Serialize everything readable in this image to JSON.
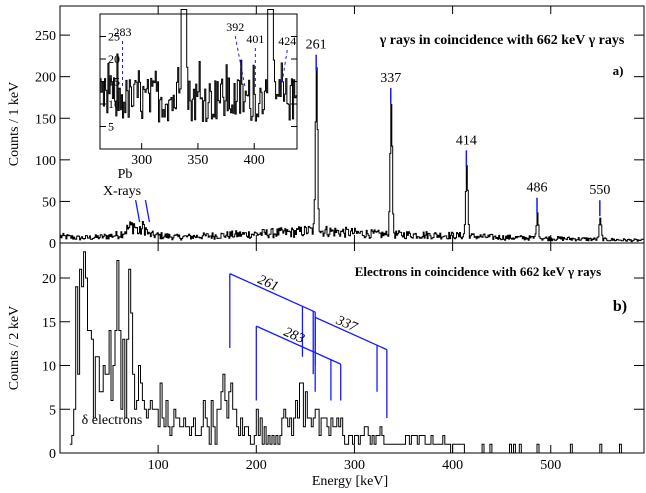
{
  "chart_data": [
    {
      "type": "line",
      "panel_label": "a)",
      "title": "γ rays in coincidence with 662 keV  γ rays",
      "ylabel": "Counts / 1 keV",
      "xlim": [
        0,
        595
      ],
      "ylim": [
        0,
        285
      ],
      "x_ticks": [
        100,
        200,
        300,
        400,
        500
      ],
      "y_ticks": [
        0,
        50,
        100,
        150,
        200,
        250
      ],
      "peaks": [
        {
          "energy": 261,
          "label": "261",
          "height": 200
        },
        {
          "energy": 337,
          "label": "337",
          "height": 160
        },
        {
          "energy": 414,
          "label": "414",
          "height": 85
        },
        {
          "energy": 486,
          "label": "486",
          "height": 28
        },
        {
          "energy": 550,
          "label": "550",
          "height": 25
        }
      ],
      "annotation": {
        "line1": "Pb",
        "line2": "X-rays",
        "energies": [
          75,
          85
        ]
      },
      "baseline": [
        [
          0,
          8
        ],
        [
          20,
          6
        ],
        [
          40,
          7
        ],
        [
          60,
          10
        ],
        [
          75,
          22
        ],
        [
          80,
          12
        ],
        [
          85,
          20
        ],
        [
          90,
          10
        ],
        [
          120,
          7
        ],
        [
          160,
          9
        ],
        [
          200,
          11
        ],
        [
          240,
          13
        ],
        [
          255,
          15
        ],
        [
          275,
          14
        ],
        [
          300,
          12
        ],
        [
          330,
          10
        ],
        [
          360,
          10
        ],
        [
          400,
          9
        ],
        [
          440,
          7
        ],
        [
          480,
          6
        ],
        [
          520,
          5
        ],
        [
          560,
          4
        ],
        [
          595,
          3
        ]
      ],
      "inset": {
        "xlim": [
          263,
          438
        ],
        "ylim": [
          0,
          30
        ],
        "x_ticks": [
          300,
          350,
          400
        ],
        "y_ticks": [
          5,
          10,
          15,
          20,
          25
        ],
        "peaks": [
          {
            "energy": 337,
            "height": 31
          },
          {
            "energy": 414,
            "height": 31
          }
        ],
        "labels": [
          {
            "energy": 283,
            "text": "283"
          },
          {
            "energy": 392,
            "text": "392"
          },
          {
            "energy": 401,
            "text": "401"
          },
          {
            "energy": 424,
            "text": "424"
          }
        ]
      }
    },
    {
      "type": "line",
      "panel_label": "b)",
      "title": "Electrons in coincidence with 662 keV  γ rays",
      "xlabel": "Energy [keV]",
      "ylabel": "Counts / 2 keV",
      "xlim": [
        0,
        595
      ],
      "ylim": [
        0,
        24
      ],
      "x_ticks": [
        100,
        200,
        300,
        400,
        500
      ],
      "y_ticks": [
        0,
        5,
        10,
        15,
        20
      ],
      "annotation": "δ electrons",
      "envelope": [
        [
          10,
          2
        ],
        [
          20,
          23
        ],
        [
          25,
          24
        ],
        [
          30,
          14
        ],
        [
          40,
          10
        ],
        [
          45,
          8
        ],
        [
          55,
          22
        ],
        [
          60,
          18
        ],
        [
          65,
          13
        ],
        [
          70,
          17
        ],
        [
          75,
          10
        ],
        [
          80,
          9
        ],
        [
          90,
          5
        ],
        [
          100,
          7
        ],
        [
          110,
          4
        ],
        [
          120,
          5
        ],
        [
          130,
          3
        ],
        [
          140,
          4
        ],
        [
          150,
          5
        ],
        [
          160,
          4
        ],
        [
          170,
          10
        ],
        [
          175,
          6
        ],
        [
          185,
          3
        ],
        [
          200,
          4
        ],
        [
          210,
          2
        ],
        [
          225,
          4
        ],
        [
          240,
          5
        ],
        [
          248,
          9
        ],
        [
          255,
          7
        ],
        [
          265,
          3
        ],
        [
          280,
          4
        ],
        [
          300,
          2
        ],
        [
          320,
          3
        ],
        [
          335,
          1
        ],
        [
          360,
          2
        ],
        [
          400,
          1
        ],
        [
          450,
          1
        ],
        [
          500,
          1
        ],
        [
          595,
          0.5
        ]
      ],
      "conversion_groups": [
        {
          "label": "261",
          "top": 20.5,
          "lines": [
            {
              "energy": 173,
              "bottom": 12
            },
            {
              "energy": 247,
              "bottom": 11
            },
            {
              "energy": 258,
              "bottom": 9
            },
            {
              "energy": 260,
              "bottom": 7
            }
          ]
        },
        {
          "label": "283",
          "top": 14.5,
          "lines": [
            {
              "energy": 200,
              "bottom": 6
            },
            {
              "energy": 276,
              "bottom": 6
            },
            {
              "energy": 286,
              "bottom": 6
            }
          ]
        },
        {
          "label": "337",
          "top": 15.5,
          "lines": [
            {
              "energy": 260,
              "bottom": 10
            },
            {
              "energy": 323,
              "bottom": 7
            },
            {
              "energy": 333,
              "bottom": 4
            }
          ]
        }
      ]
    }
  ]
}
